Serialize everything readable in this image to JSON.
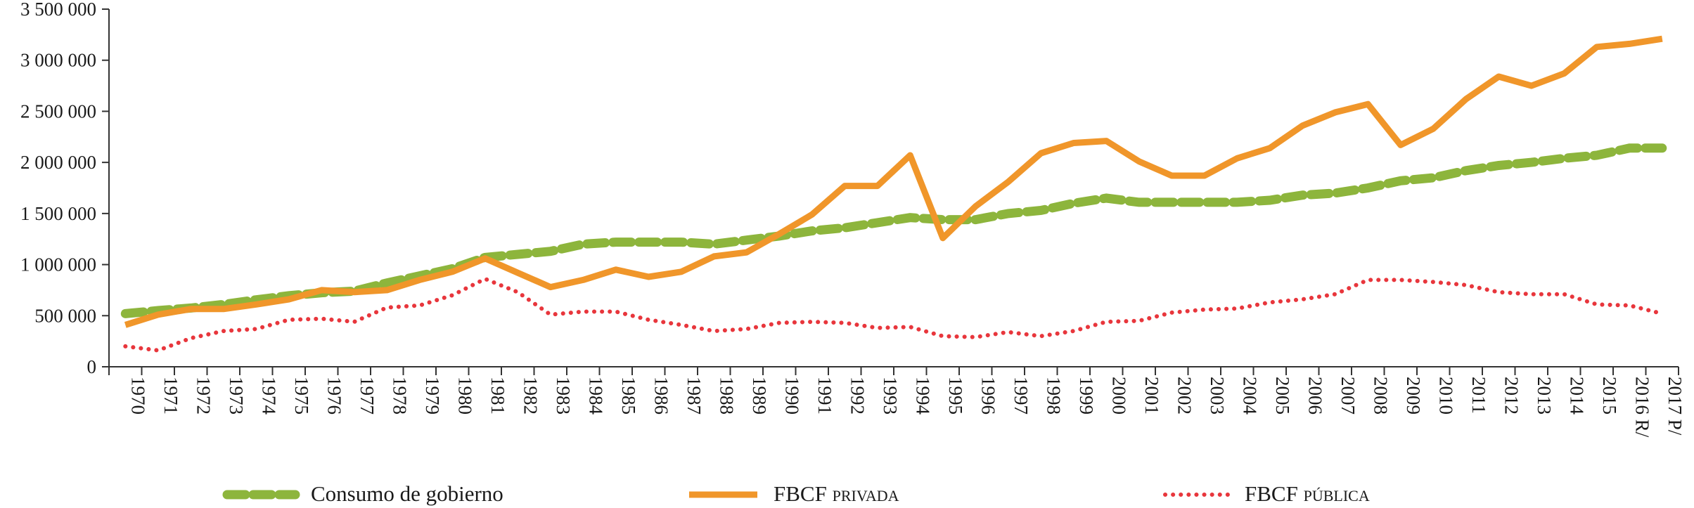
{
  "chart_data": {
    "type": "line",
    "title": "",
    "xlabel": "",
    "ylabel": "",
    "ylim": [
      0,
      3500000
    ],
    "y_ticks": [
      0,
      500000,
      1000000,
      1500000,
      2000000,
      2500000,
      3000000,
      3500000
    ],
    "y_tick_labels": [
      "0",
      "500 000",
      "1 000 000",
      "1 500 000",
      "2 000 000",
      "2 500 000",
      "3 000 000",
      "3 500 000"
    ],
    "categories": [
      "1970",
      "1971",
      "1972",
      "1973",
      "1974",
      "1975",
      "1976",
      "1977",
      "1978",
      "1979",
      "1980",
      "1981",
      "1982",
      "1983",
      "1984",
      "1985",
      "1986",
      "1987",
      "1988",
      "1989",
      "1990",
      "1991",
      "1992",
      "1993",
      "1994",
      "1995",
      "1996",
      "1997",
      "1998",
      "1999",
      "2000",
      "2001",
      "2002",
      "2003",
      "2004",
      "2005",
      "2006",
      "2007",
      "2008",
      "2009",
      "2010",
      "2011",
      "2012",
      "2013",
      "2014",
      "2015",
      "2016 R/",
      "2017 P/"
    ],
    "grid": false,
    "legend_position": "bottom",
    "series": [
      {
        "name": "Consumo de gobierno",
        "style": "dashed",
        "color": "#8db53c",
        "values": [
          520000,
          550000,
          575000,
          610000,
          655000,
          695000,
          725000,
          740000,
          820000,
          890000,
          960000,
          1070000,
          1100000,
          1130000,
          1200000,
          1220000,
          1220000,
          1220000,
          1200000,
          1240000,
          1280000,
          1330000,
          1360000,
          1410000,
          1460000,
          1440000,
          1440000,
          1500000,
          1530000,
          1600000,
          1650000,
          1610000,
          1610000,
          1610000,
          1610000,
          1630000,
          1680000,
          1700000,
          1750000,
          1820000,
          1850000,
          1920000,
          1970000,
          2000000,
          2040000,
          2070000,
          2140000,
          2140000
        ]
      },
      {
        "name": "FBCF privada",
        "style": "solid",
        "color": "#f0962a",
        "values": [
          410000,
          510000,
          565000,
          565000,
          610000,
          660000,
          750000,
          730000,
          750000,
          850000,
          930000,
          1060000,
          920000,
          780000,
          850000,
          950000,
          880000,
          930000,
          1080000,
          1120000,
          1300000,
          1490000,
          1770000,
          1770000,
          2070000,
          1260000,
          1570000,
          1810000,
          2090000,
          2190000,
          2210000,
          2010000,
          1870000,
          1870000,
          2040000,
          2140000,
          2360000,
          2490000,
          2570000,
          2170000,
          2330000,
          2620000,
          2840000,
          2750000,
          2870000,
          3130000,
          3160000,
          3210000
        ]
      },
      {
        "name": "FBCF pública",
        "style": "dotted",
        "color": "#e8363c",
        "values": [
          200000,
          160000,
          280000,
          350000,
          370000,
          460000,
          470000,
          440000,
          580000,
          600000,
          700000,
          860000,
          730000,
          510000,
          540000,
          540000,
          460000,
          410000,
          350000,
          370000,
          430000,
          440000,
          430000,
          380000,
          390000,
          300000,
          290000,
          340000,
          300000,
          350000,
          440000,
          450000,
          530000,
          560000,
          570000,
          630000,
          660000,
          710000,
          850000,
          850000,
          830000,
          800000,
          730000,
          710000,
          710000,
          610000,
          600000,
          520000
        ]
      }
    ]
  }
}
